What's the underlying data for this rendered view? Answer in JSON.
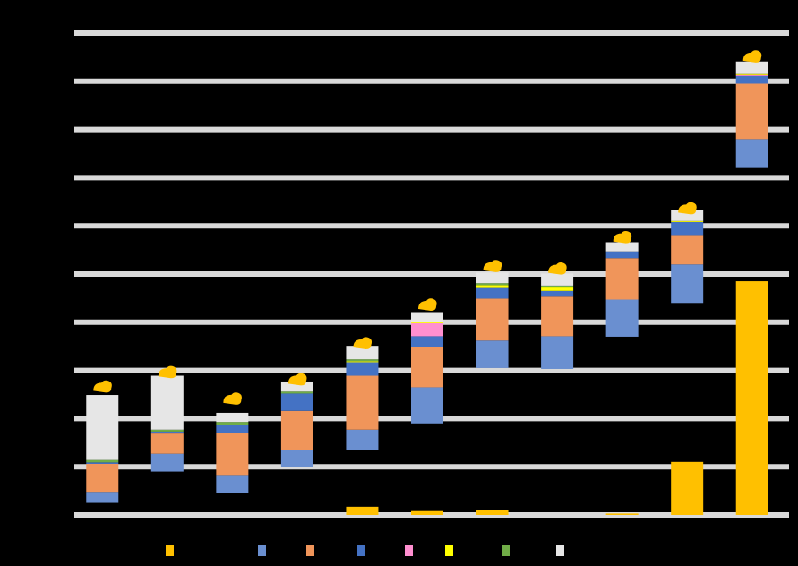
{
  "chart_data": {
    "type": "bar",
    "stacked": true,
    "background": "#000000",
    "grid": true,
    "grid_color": "#d9d9d9",
    "ylim": [
      0,
      10
    ],
    "categories": [
      "",
      "",
      "",
      "",
      "",
      "",
      "",
      "",
      "",
      "",
      ""
    ],
    "series": [
      {
        "key": "s1",
        "color": "#ffc000",
        "values": [
          0,
          0,
          0,
          0,
          0.17,
          0.08,
          0.1,
          0,
          0.03,
          1.1,
          4.85
        ]
      },
      {
        "key": "s2",
        "color": "#6a8fd0",
        "values": [
          0.23,
          0.37,
          0.38,
          0.34,
          0.42,
          0.75,
          0.57,
          0.68,
          0.77,
          0.8,
          0.6
        ]
      },
      {
        "key": "s3",
        "color": "#f0955a",
        "values": [
          0.58,
          0.42,
          0.88,
          0.82,
          1.12,
          0.84,
          0.87,
          0.82,
          0.86,
          0.61,
          1.15
        ]
      },
      {
        "key": "s4",
        "color": "#4472c4",
        "values": [
          0.03,
          0.04,
          0.16,
          0.36,
          0.28,
          0.22,
          0.22,
          0.12,
          0.14,
          0.27,
          0.16
        ]
      },
      {
        "key": "s5",
        "color": "#ff8fd0",
        "values": [
          0,
          0,
          0,
          0,
          0,
          0.27,
          0,
          0,
          0,
          0,
          0.02
        ]
      },
      {
        "key": "s6",
        "color": "#ffff00",
        "values": [
          0,
          0,
          0,
          0,
          0.02,
          0.03,
          0.06,
          0.07,
          0,
          0.02,
          0.02
        ]
      },
      {
        "key": "s7",
        "color": "#70ad47",
        "values": [
          0.05,
          0.04,
          0.06,
          0.04,
          0.04,
          0,
          0.04,
          0.04,
          0,
          0,
          0
        ]
      },
      {
        "key": "s8",
        "color": "#e6e6e6",
        "values": [
          1.35,
          1.12,
          0.19,
          0.21,
          0.28,
          0.2,
          0.22,
          0.25,
          0.19,
          0.22,
          0.26
        ]
      }
    ],
    "floating_bases": [
      0.25,
      0.9,
      0.45,
      1.0,
      1.35,
      1.9,
      3.05,
      3.03,
      3.7,
      4.4,
      7.2
    ],
    "top_markers": {
      "color": "#ffc000",
      "values": [
        2.65,
        2.95,
        2.4,
        2.8,
        3.55,
        4.35,
        5.15,
        5.1,
        5.75,
        6.35,
        9.5
      ]
    },
    "legend": {
      "position": "bottom"
    }
  }
}
